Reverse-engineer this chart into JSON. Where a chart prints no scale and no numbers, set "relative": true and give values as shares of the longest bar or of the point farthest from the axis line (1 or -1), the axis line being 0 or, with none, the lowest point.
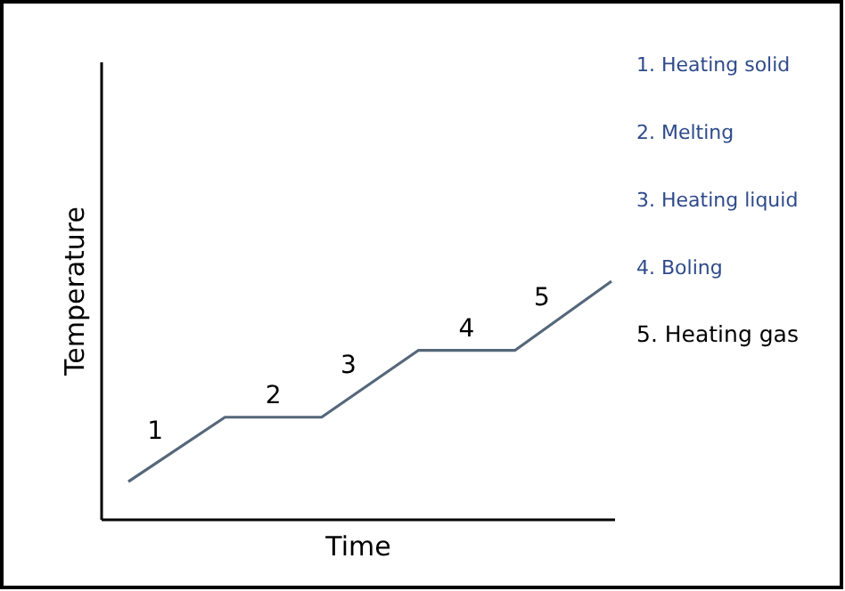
{
  "chart_data": {
    "type": "line",
    "xlabel": "Time",
    "ylabel": "Temperature",
    "relative": true,
    "categories": [
      null,
      null,
      null,
      null,
      null,
      null
    ],
    "series": [
      {
        "color": "#55677a",
        "values": [
          0.16,
          0.43,
          0.43,
          0.71,
          0.71,
          1
        ]
      }
    ],
    "annotations": [
      "1",
      "2",
      "3",
      "4",
      "5",
      "1. Heating solid",
      "2. Melting",
      "3. Heating liquid",
      "4. Boling",
      "5. Heating gas"
    ]
  }
}
